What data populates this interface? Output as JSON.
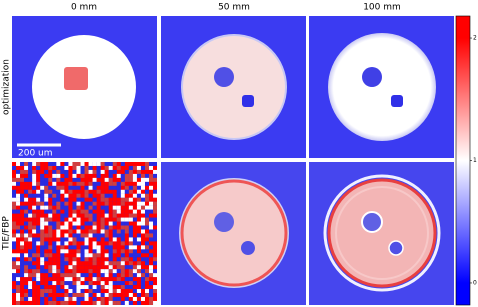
{
  "chart_data": {
    "type": "image-grid",
    "columns": [
      "0 mm",
      "50 mm",
      "100 mm"
    ],
    "rows": [
      "optimization",
      "TIE/FBP"
    ],
    "scale_bar": "200 um",
    "colormap": [
      "#0000ff",
      "#ffffff",
      "#ff0000"
    ],
    "ylim": [
      -0.18,
      2.18
    ],
    "yticks": [
      0,
      1,
      2
    ]
  }
}
